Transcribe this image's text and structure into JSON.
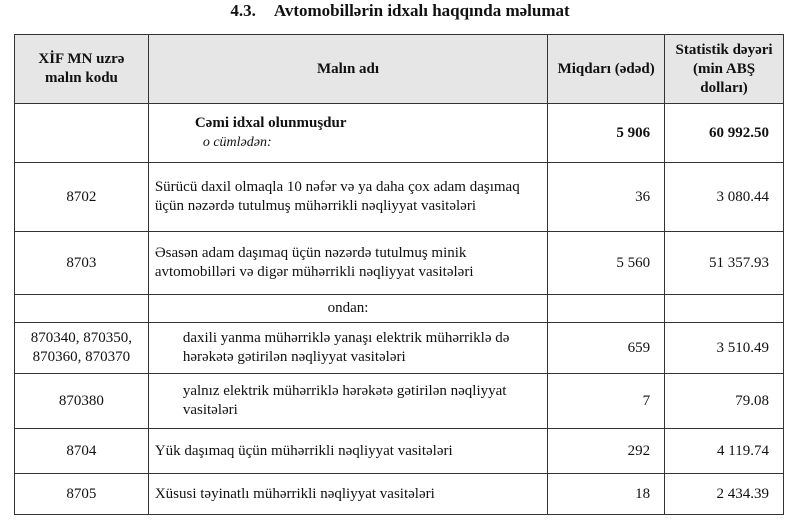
{
  "title": {
    "number": "4.3.",
    "text": "Avtomobillərin idxalı haqqında məlumat"
  },
  "headers": {
    "code": "XİF MN uzrə malın kodu",
    "name": "Malın adı",
    "qty": "Miqdarı (ədəd)",
    "value": "Statistik dəyəri (min ABŞ dolları)"
  },
  "total": {
    "label": "Cəmi idxal olunmuşdur",
    "sublabel": "o cümlədən:",
    "qty": "5 906",
    "value": "60 992.50"
  },
  "rows": [
    {
      "code": "8702",
      "name": "Sürücü daxil olmaqla 10 nəfər və ya daha çox adam daşımaq üçün nəzərdə tutulmuş mühərrikli nəqliyyat vasitələri",
      "qty": "36",
      "value": "3 080.44"
    },
    {
      "code": "8703",
      "name": "Əsasən adam daşımaq üçün nəzərdə tutulmuş minik avtomobilləri və digər mühərrikli nəqliyyat vasitələri",
      "qty": "5 560",
      "value": "51 357.93"
    }
  ],
  "ondan": "ondan:",
  "subrows": [
    {
      "code": "870340, 870350, 870360, 870370",
      "name": "daxili yanma mühərriklə yanaşı elektrik mühərriklə də hərəkətə gətirilən nəqliyyat vasitələri",
      "qty": "659",
      "value": "3 510.49"
    },
    {
      "code": "870380",
      "name": "yalnız elektrik mühərriklə hərəkətə gətirilən nəqliyyat vasitələri",
      "qty": "7",
      "value": "79.08"
    }
  ],
  "rows2": [
    {
      "code": "8704",
      "name": "Yük daşımaq üçün mühərrikli nəqliyyat vasitələri",
      "qty": "292",
      "value": "4 119.74"
    },
    {
      "code": "8705",
      "name": "Xüsusi təyinatlı mühərrikli nəqliyyat vasitələri",
      "qty": "18",
      "value": "2 434.39"
    }
  ]
}
